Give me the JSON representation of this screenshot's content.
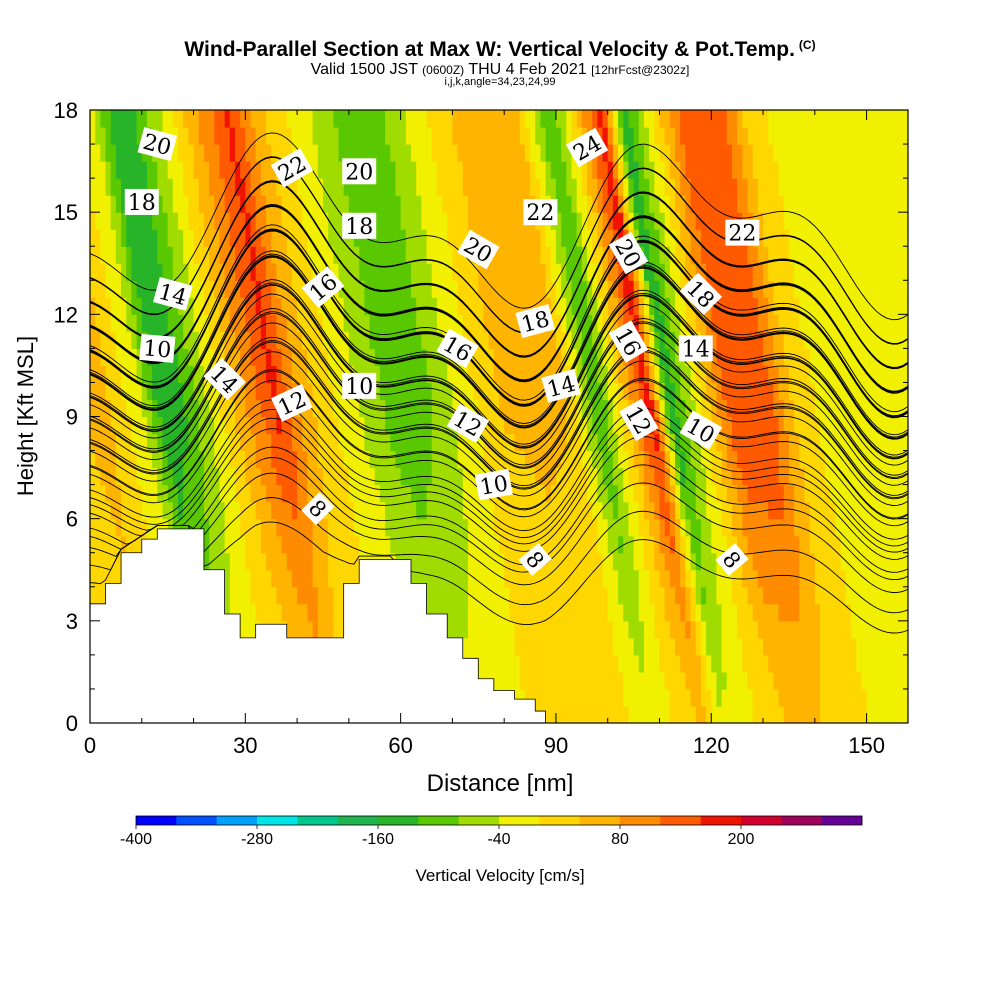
{
  "header": {
    "title": "Wind-Parallel Section at Max W: Vertical Velocity & Pot.Temp.",
    "copyright": "(C)",
    "valid_prefix": "Valid 1500 JST",
    "utc_time": "(0600Z)",
    "valid_date": "THU 4 Feb 2021",
    "forecast_info": "[12hrFcst@2302z]",
    "indices": "i,j,k,angle=34,23,24,99"
  },
  "colorbar": {
    "label": "Vertical Velocity [cm/s]",
    "tick_labels": [
      "-400",
      "-280",
      "-160",
      "-40",
      "80",
      "200"
    ],
    "colors": [
      "#0000ff",
      "#0050ff",
      "#00a0ff",
      "#00e6e6",
      "#00c88c",
      "#20b450",
      "#28b428",
      "#5ac800",
      "#a0dc00",
      "#f0f000",
      "#ffd700",
      "#ffb400",
      "#ff8c00",
      "#ff5a00",
      "#f01400",
      "#d2002d",
      "#a0005a",
      "#640096"
    ]
  },
  "chart_data": {
    "type": "heatmap",
    "title": "Wind-Parallel Section at Max W: Vertical Velocity & Pot.Temp.",
    "xlabel": "Distance [nm]",
    "ylabel": "Height [Kft MSL]",
    "xlim": [
      0,
      158
    ],
    "ylim": [
      0,
      18
    ],
    "x_ticks": [
      0,
      30,
      60,
      90,
      120,
      150
    ],
    "y_ticks": [
      0,
      3,
      6,
      9,
      12,
      15,
      18
    ],
    "color_variable": "Vertical Velocity [cm/s]",
    "color_range": [
      -400,
      320
    ],
    "color_step": 40,
    "velocity_columns": [
      {
        "x": 0,
        "w": 20
      },
      {
        "x": 8,
        "w": 60
      },
      {
        "x": 16,
        "w": -40
      },
      {
        "x": 20,
        "w": -160
      },
      {
        "x": 24,
        "w": -120
      },
      {
        "x": 30,
        "w": -20
      },
      {
        "x": 36,
        "w": 80
      },
      {
        "x": 42,
        "w": 170
      },
      {
        "x": 47,
        "w": 60
      },
      {
        "x": 52,
        "w": 10
      },
      {
        "x": 60,
        "w": -60
      },
      {
        "x": 66,
        "w": -110
      },
      {
        "x": 72,
        "w": -80
      },
      {
        "x": 78,
        "w": -20
      },
      {
        "x": 85,
        "w": 40
      },
      {
        "x": 92,
        "w": 50
      },
      {
        "x": 98,
        "w": 40
      },
      {
        "x": 104,
        "w": -120
      },
      {
        "x": 110,
        "w": 60
      },
      {
        "x": 114,
        "w": 190
      },
      {
        "x": 118,
        "w": -150
      },
      {
        "x": 124,
        "w": 0
      },
      {
        "x": 130,
        "w": 150
      },
      {
        "x": 136,
        "w": 160
      },
      {
        "x": 142,
        "w": 30
      },
      {
        "x": 150,
        "w": -30
      },
      {
        "x": 158,
        "w": -20
      }
    ],
    "terrain": [
      [
        0,
        3.5
      ],
      [
        3,
        4.1
      ],
      [
        6,
        5.0
      ],
      [
        10,
        5.4
      ],
      [
        13,
        5.7
      ],
      [
        19,
        5.7
      ],
      [
        22,
        4.5
      ],
      [
        26,
        3.2
      ],
      [
        29,
        2.5
      ],
      [
        32,
        2.9
      ],
      [
        38,
        2.5
      ],
      [
        45,
        2.5
      ],
      [
        49,
        4.1
      ],
      [
        52,
        4.8
      ],
      [
        58,
        4.8
      ],
      [
        62,
        4.1
      ],
      [
        65,
        3.2
      ],
      [
        69,
        2.5
      ],
      [
        72,
        1.9
      ],
      [
        75,
        1.3
      ],
      [
        78,
        0.95
      ],
      [
        82,
        0.7
      ],
      [
        86,
        0.35
      ],
      [
        88,
        0
      ]
    ],
    "theta_contours": [
      {
        "level": "8",
        "base": 4.1
      },
      {
        "level": "10",
        "base": 6.0
      },
      {
        "level": "12",
        "base": 7.2
      },
      {
        "level": "14",
        "base": 8.2
      },
      {
        "level": "16",
        "base": 9.0
      },
      {
        "level": "18",
        "base": 9.6
      },
      {
        "level": "20",
        "base": 10.3
      },
      {
        "level": "22",
        "base": 11.0
      },
      {
        "level": "24",
        "base": 11.7
      }
    ],
    "contour_labels": [
      {
        "text": "20",
        "x": 13,
        "y": 17.0,
        "rot": 15
      },
      {
        "text": "18",
        "x": 10,
        "y": 15.3,
        "rot": 0
      },
      {
        "text": "14",
        "x": 16,
        "y": 12.6,
        "rot": 15
      },
      {
        "text": "10",
        "x": 13,
        "y": 11.0,
        "rot": 5
      },
      {
        "text": "14",
        "x": 26,
        "y": 10.1,
        "rot": 45
      },
      {
        "text": "22",
        "x": 39,
        "y": 16.3,
        "rot": -30
      },
      {
        "text": "20",
        "x": 52,
        "y": 16.2,
        "rot": 0
      },
      {
        "text": "18",
        "x": 52,
        "y": 14.6,
        "rot": 0
      },
      {
        "text": "16",
        "x": 45,
        "y": 12.8,
        "rot": -40
      },
      {
        "text": "12",
        "x": 39,
        "y": 9.4,
        "rot": -25
      },
      {
        "text": "10",
        "x": 52,
        "y": 9.9,
        "rot": 0
      },
      {
        "text": "8",
        "x": 44,
        "y": 6.3,
        "rot": 45
      },
      {
        "text": "24",
        "x": 96,
        "y": 16.9,
        "rot": -30
      },
      {
        "text": "22",
        "x": 87,
        "y": 15.0,
        "rot": 0
      },
      {
        "text": "20",
        "x": 75,
        "y": 13.9,
        "rot": 30
      },
      {
        "text": "18",
        "x": 86,
        "y": 11.8,
        "rot": -15
      },
      {
        "text": "16",
        "x": 71,
        "y": 11.0,
        "rot": 30
      },
      {
        "text": "14",
        "x": 91,
        "y": 9.9,
        "rot": -15
      },
      {
        "text": "12",
        "x": 73,
        "y": 8.8,
        "rot": 30
      },
      {
        "text": "10",
        "x": 78,
        "y": 7.0,
        "rot": -10
      },
      {
        "text": "8",
        "x": 86,
        "y": 4.8,
        "rot": 50
      },
      {
        "text": "20",
        "x": 104,
        "y": 13.8,
        "rot": 60
      },
      {
        "text": "16",
        "x": 104,
        "y": 11.2,
        "rot": 60
      },
      {
        "text": "12",
        "x": 106,
        "y": 8.9,
        "rot": 60
      },
      {
        "text": "18",
        "x": 118,
        "y": 12.6,
        "rot": 45
      },
      {
        "text": "14",
        "x": 117,
        "y": 11.0,
        "rot": 0
      },
      {
        "text": "10",
        "x": 118,
        "y": 8.6,
        "rot": 30
      },
      {
        "text": "22",
        "x": 126,
        "y": 14.4,
        "rot": 0
      },
      {
        "text": "8",
        "x": 124,
        "y": 4.8,
        "rot": 50
      }
    ]
  }
}
